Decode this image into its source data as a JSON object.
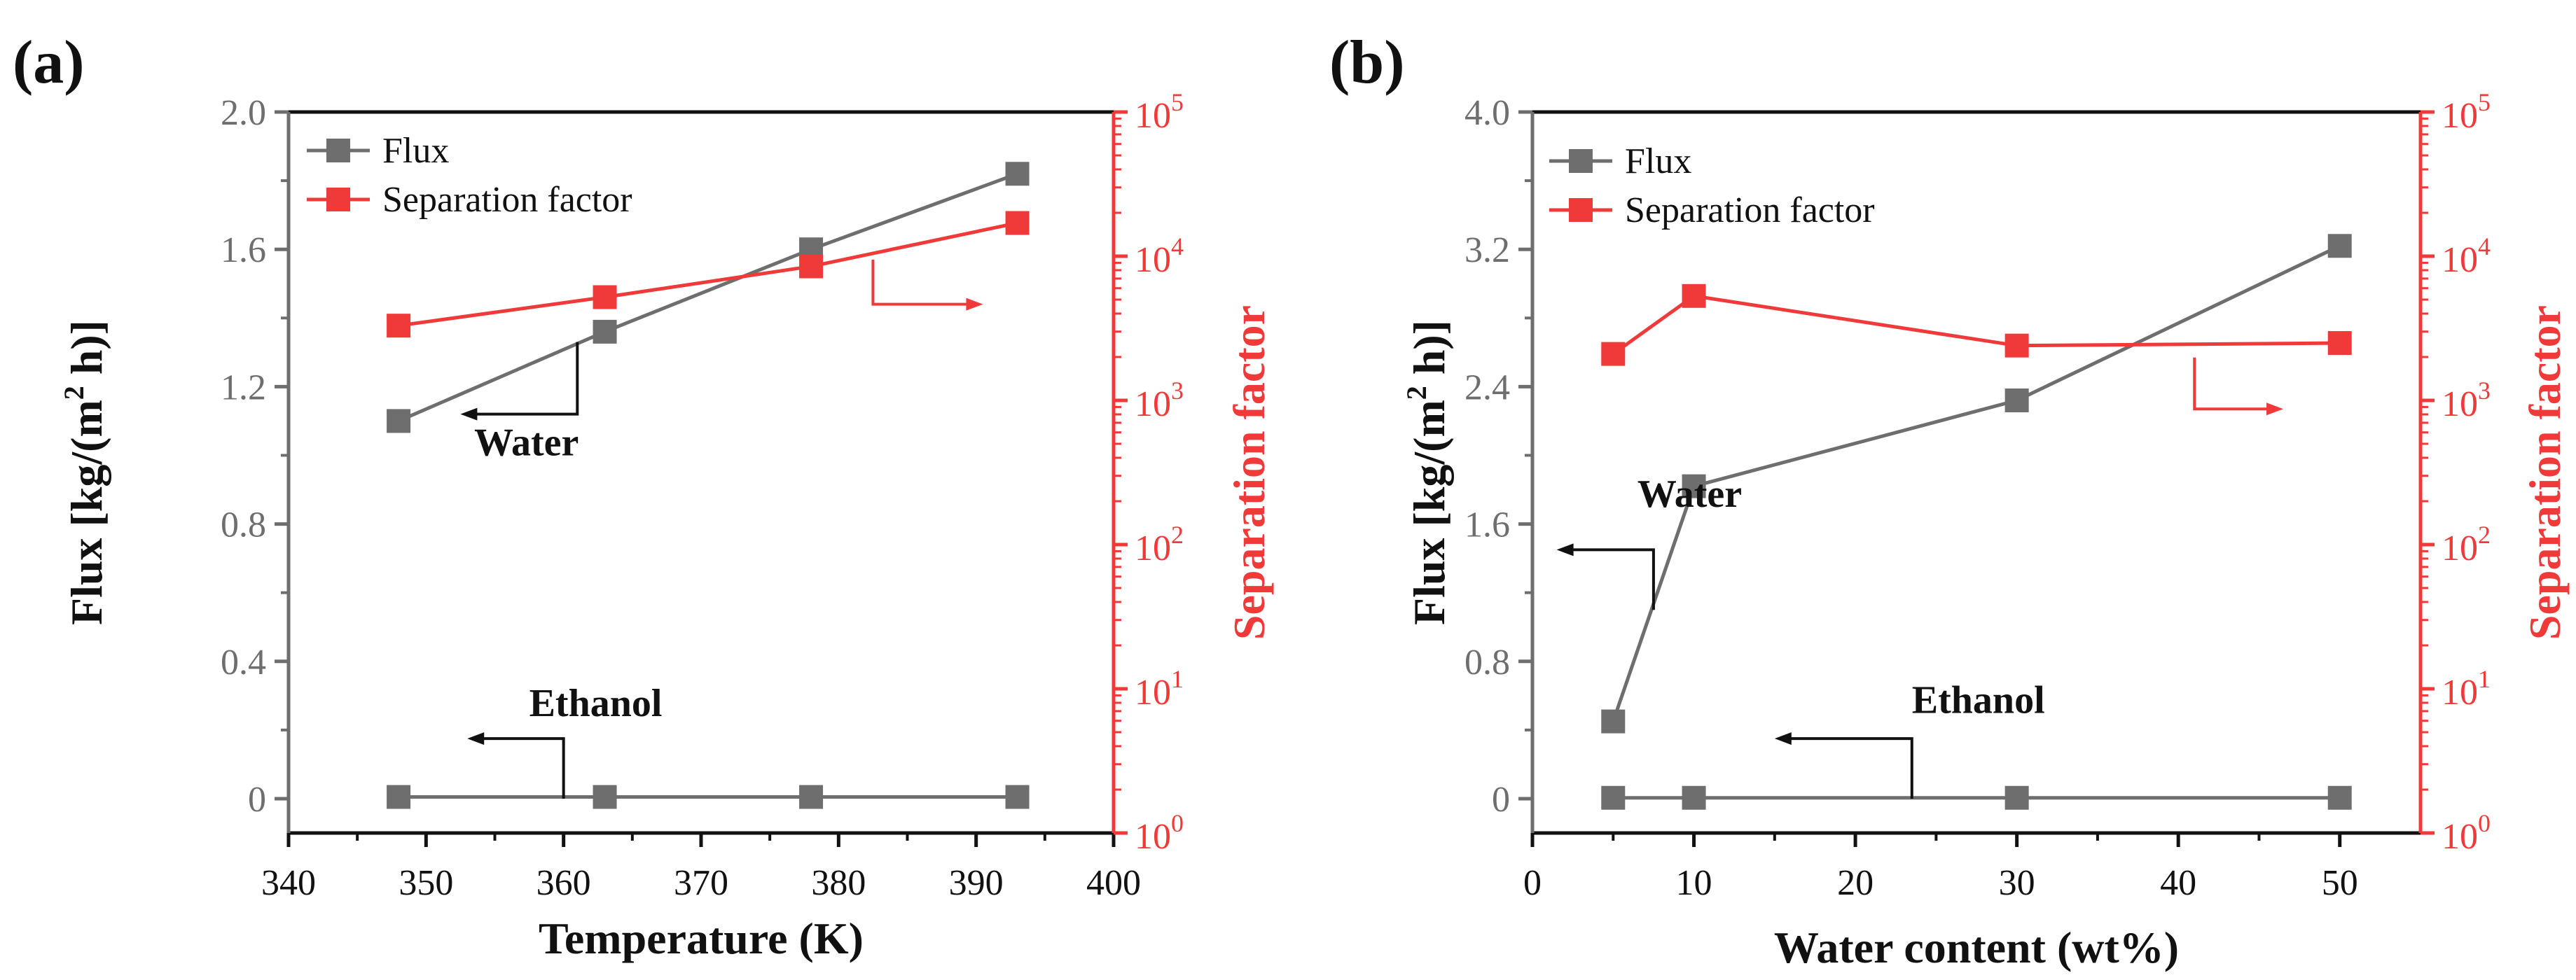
{
  "colors": {
    "flux": "#6e6e6e",
    "separation": "#f03a3a",
    "axis": "#111111",
    "text": "#111111"
  },
  "chart_data": [
    {
      "type": "line",
      "panel_label": "(a)",
      "xlabel": "Temperature (K)",
      "ylabel": "Flux [kg/(m",
      "ylabel_sup": "2",
      "ylabel_tail": " h)]",
      "y2label": "Separation factor",
      "xlim": [
        340,
        400
      ],
      "xticks": [
        340,
        350,
        360,
        370,
        380,
        390,
        400
      ],
      "xtick_labels": [
        "340",
        "350",
        "360",
        "370",
        "380",
        "390",
        "400"
      ],
      "ylim": [
        -0.1,
        2.0
      ],
      "yticks": [
        0,
        0.4,
        0.8,
        1.2,
        1.6,
        2.0
      ],
      "ytick_labels": [
        "0",
        "0.4",
        "0.8",
        "1.2",
        "1.6",
        "2.0"
      ],
      "y2_scale": "log",
      "y2lim": [
        1,
        100000
      ],
      "y2_exponents": [
        "0",
        "1",
        "2",
        "3",
        "4",
        "5"
      ],
      "y2_base": "10",
      "legend": {
        "position": "top-left",
        "entries": [
          "Flux",
          "Separation factor"
        ]
      },
      "series": [
        {
          "name": "Water flux",
          "axis": "left",
          "color": "flux",
          "x": [
            348,
            363,
            378,
            393
          ],
          "y": [
            1.1,
            1.36,
            1.6,
            1.82
          ]
        },
        {
          "name": "Ethanol flux",
          "axis": "left",
          "color": "flux",
          "x": [
            348,
            363,
            378,
            393
          ],
          "y": [
            0.005,
            0.005,
            0.005,
            0.005
          ]
        },
        {
          "name": "Separation factor",
          "axis": "right",
          "color": "separation",
          "x": [
            348,
            363,
            378,
            393
          ],
          "y": [
            3300,
            5200,
            8500,
            17000
          ]
        }
      ],
      "annotations": [
        {
          "text": "Water",
          "tx": 353.5,
          "ty": 1.0,
          "arrow": [
            [
              361,
              1.33
            ],
            [
              361,
              1.12
            ],
            [
              352.5,
              1.12
            ]
          ]
        },
        {
          "text": "Ethanol",
          "tx": 357.5,
          "ty": 0.24,
          "arrow": [
            [
              360,
              0
            ],
            [
              360,
              0.175
            ],
            [
              353,
              0.175
            ]
          ]
        },
        {
          "text": "",
          "arrow": [
            [
              382.5,
              1.57
            ],
            [
              382.5,
              1.44
            ],
            [
              390.5,
              1.44
            ]
          ]
        }
      ]
    },
    {
      "type": "line",
      "panel_label": "(b)",
      "xlabel": "Water content (wt%)",
      "ylabel": "Flux [kg/(m",
      "ylabel_sup": "2",
      "ylabel_tail": " h)]",
      "y2label": "Separation factor",
      "xlim": [
        0,
        55
      ],
      "xticks": [
        0,
        10,
        20,
        30,
        40,
        50
      ],
      "xtick_labels": [
        "0",
        "10",
        "20",
        "30",
        "40",
        "50"
      ],
      "ylim": [
        -0.2,
        4.0
      ],
      "yticks": [
        0,
        0.8,
        1.6,
        2.4,
        3.2,
        4.0
      ],
      "ytick_labels": [
        "0",
        "0.8",
        "1.6",
        "2.4",
        "3.2",
        "4.0"
      ],
      "y2_scale": "log",
      "y2lim": [
        1,
        100000
      ],
      "y2_exponents": [
        "0",
        "1",
        "2",
        "3",
        "4",
        "5"
      ],
      "y2_base": "10",
      "legend": {
        "position": "top-left",
        "entries": [
          "Flux",
          "Separation factor"
        ]
      },
      "series": [
        {
          "name": "Water flux",
          "axis": "left",
          "color": "flux",
          "x": [
            5,
            10,
            30,
            50
          ],
          "y": [
            0.45,
            1.82,
            2.32,
            3.22
          ]
        },
        {
          "name": "Ethanol flux",
          "axis": "left",
          "color": "flux",
          "x": [
            5,
            10,
            30,
            50
          ],
          "y": [
            0.005,
            0.005,
            0.005,
            0.005
          ]
        },
        {
          "name": "Separation factor",
          "axis": "right",
          "color": "separation",
          "x": [
            5,
            10,
            30,
            50
          ],
          "y": [
            2100,
            5300,
            2400,
            2500
          ]
        }
      ],
      "annotations": [
        {
          "text": "Water",
          "tx": 6.5,
          "ty": 1.7,
          "arrow": [
            [
              7.5,
              1.1
            ],
            [
              7.5,
              1.45
            ],
            [
              1.5,
              1.45
            ]
          ]
        },
        {
          "text": "Ethanol",
          "tx": 23.5,
          "ty": 0.5,
          "arrow": [
            [
              23.5,
              0
            ],
            [
              23.5,
              0.35
            ],
            [
              15,
              0.35
            ]
          ]
        },
        {
          "text": "",
          "arrow": [
            [
              41,
              2.57
            ],
            [
              41,
              2.27
            ],
            [
              46.5,
              2.27
            ]
          ]
        }
      ]
    }
  ]
}
